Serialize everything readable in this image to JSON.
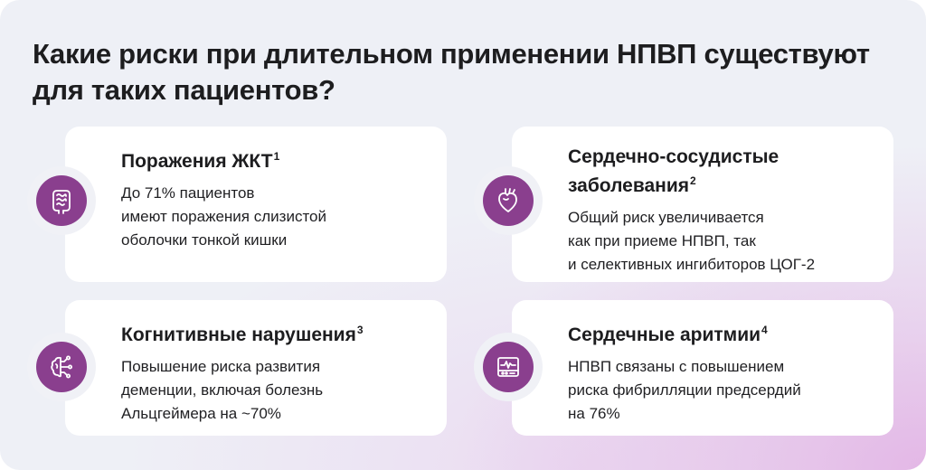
{
  "title": "Какие риски при длительном применении НПВП существуют для таких пациентов?",
  "cards": [
    {
      "heading": "Поражения ЖКТ",
      "ref": "1",
      "text": "До 71% пациентов\nимеют поражения слизистой\nоболочки тонкой кишки",
      "icon": "intestine-icon"
    },
    {
      "heading": "Сердечно-сосудистые\nзаболевания",
      "ref": "2",
      "text": "Общий риск увеличивается\nкак при приеме НПВП, так\nи селективных ингибиторов ЦОГ-2",
      "icon": "heart-icon"
    },
    {
      "heading": "Когнитивные нарушения",
      "ref": "3",
      "text": "Повышение риска развития\nдеменции, включая болезнь\nАльцгеймера на ~70%",
      "icon": "brain-circuit-icon"
    },
    {
      "heading": "Сердечные аритмии",
      "ref": "4",
      "text": "НПВП связаны с повышением\nриска фибрилляции предсердий\nна 76%",
      "icon": "heart-monitor-icon"
    }
  ],
  "colors": {
    "accent": "#8a3f8e",
    "background": "#eef0f6",
    "card": "#ffffff",
    "text": "#1d1d1f"
  }
}
